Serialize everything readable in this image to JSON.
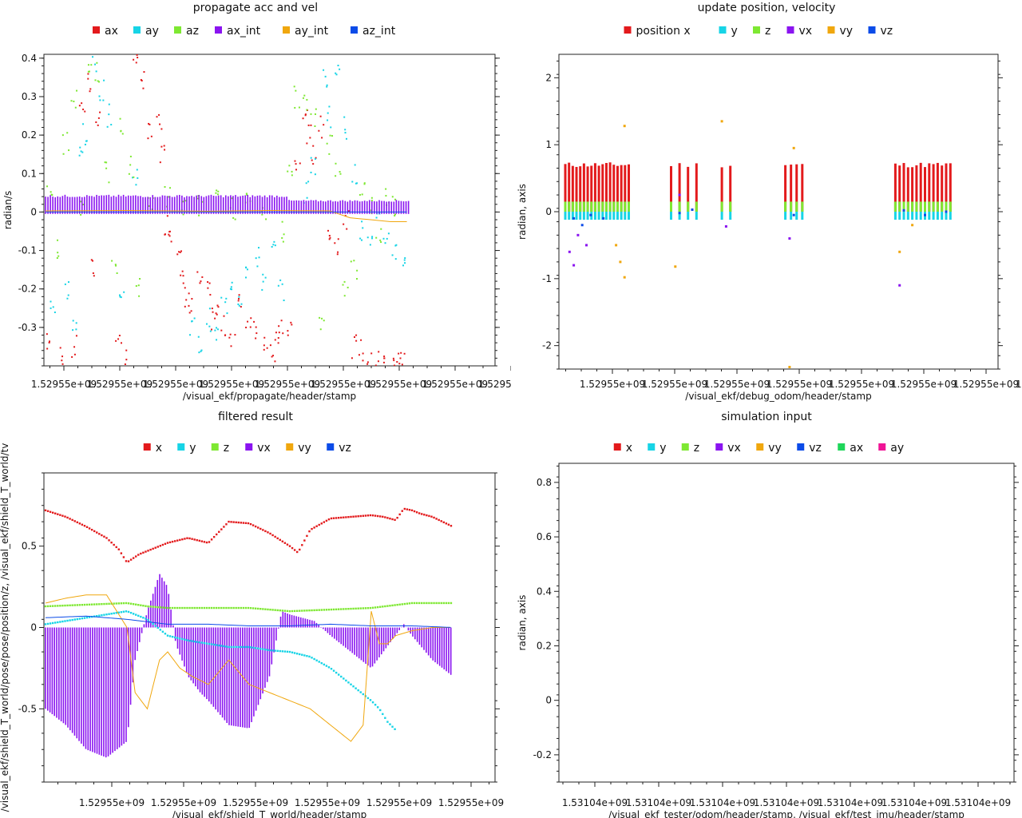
{
  "chart_data": [
    {
      "type": "scatter",
      "title": "propagate acc and vel",
      "xlabel": "/visual_ekf/propagate/header/stamp",
      "ylabel": "radian/s",
      "ylim": [
        -0.4,
        0.41
      ],
      "yticks": [
        "0.4",
        "0.3",
        "0.2",
        "0.1",
        "0",
        "-0.1",
        "-0.2",
        "-0.3"
      ],
      "ytick_values": [
        0.4,
        0.3,
        0.2,
        0.1,
        0,
        -0.1,
        -0.2,
        -0.3
      ],
      "xtick_labels": [
        "1.52955e+09",
        "1.52955e+09",
        "1.52955e+09",
        "1.52955e+09",
        "1.52955e+09",
        "1.52955e+09",
        "1.52955e+09",
        "1.52955e+09",
        "1.52955e+09"
      ],
      "legend_position": "top",
      "series": [
        {
          "name": "ax",
          "color": "#e31a1c",
          "style": "scatter",
          "x": [
            0.01,
            0.04,
            0.07,
            0.09,
            0.11,
            0.12,
            0.13,
            0.18,
            0.2,
            0.22,
            0.24,
            0.26,
            0.28,
            0.29,
            0.3,
            0.31,
            0.33,
            0.34,
            0.35,
            0.36,
            0.38,
            0.4,
            0.41,
            0.42,
            0.44,
            0.46,
            0.48,
            0.5,
            0.52,
            0.54,
            0.56,
            0.57,
            0.58,
            0.6,
            0.62,
            0.64,
            0.65,
            0.66,
            0.68,
            0.7,
            0.72,
            0.74,
            0.76,
            0.78,
            0.8,
            0.82,
            0.84,
            0.86,
            0.87,
            0.88,
            0.89
          ],
          "y": [
            -0.34,
            -0.37,
            -0.35,
            0.28,
            0.33,
            -0.15,
            0.25,
            -0.33,
            -0.38,
            0.38,
            0.35,
            0.2,
            0.23,
            0.15,
            -0.03,
            -0.05,
            -0.08,
            -0.18,
            -0.22,
            -0.25,
            -0.18,
            -0.21,
            -0.28,
            -0.26,
            -0.3,
            -0.32,
            -0.24,
            -0.28,
            -0.3,
            -0.33,
            -0.36,
            -0.34,
            -0.31,
            -0.3,
            0.12,
            0.25,
            0.2,
            0.15,
            0.22,
            -0.05,
            -0.08,
            -0.02,
            -0.35,
            -0.36,
            -0.38,
            -0.39,
            -0.37,
            -0.4,
            -0.39,
            -0.38,
            -0.4
          ]
        },
        {
          "name": "ay",
          "color": "#17d4e6",
          "style": "scatter",
          "x": [
            0.02,
            0.05,
            0.07,
            0.09,
            0.1,
            0.12,
            0.14,
            0.16,
            0.19,
            0.22,
            0.36,
            0.38,
            0.4,
            0.42,
            0.44,
            0.46,
            0.48,
            0.5,
            0.52,
            0.54,
            0.56,
            0.58,
            0.64,
            0.66,
            0.69,
            0.7,
            0.72,
            0.74,
            0.76,
            0.78,
            0.8,
            0.82,
            0.84,
            0.86,
            0.88
          ],
          "y": [
            -0.25,
            -0.2,
            -0.3,
            0.15,
            0.2,
            0.39,
            0.32,
            0.25,
            -0.22,
            0.1,
            -0.3,
            -0.35,
            -0.28,
            -0.32,
            -0.24,
            -0.18,
            -0.22,
            -0.15,
            -0.12,
            -0.18,
            -0.1,
            -0.2,
            0.05,
            0.12,
            0.35,
            0.25,
            0.38,
            0.22,
            0.1,
            -0.05,
            -0.08,
            -0.03,
            -0.06,
            -0.1,
            -0.12
          ]
        },
        {
          "name": "az",
          "color": "#7ee832",
          "style": "scatter",
          "x": [
            0.01,
            0.03,
            0.05,
            0.07,
            0.09,
            0.11,
            0.13,
            0.15,
            0.17,
            0.19,
            0.21,
            0.23,
            0.26,
            0.3,
            0.34,
            0.38,
            0.42,
            0.46,
            0.5,
            0.54,
            0.58,
            0.6,
            0.62,
            0.64,
            0.66,
            0.68,
            0.7,
            0.72,
            0.74,
            0.76,
            0.78,
            0.8,
            0.82,
            0.84,
            0.86
          ],
          "y": [
            0.05,
            -0.1,
            0.18,
            0.3,
            0.02,
            0.38,
            0.36,
            0.1,
            -0.15,
            0.22,
            0.12,
            -0.2,
            0.03,
            0.04,
            0.01,
            0.02,
            0.03,
            0.01,
            0.02,
            0.01,
            -0.05,
            0.1,
            0.3,
            0.28,
            0.24,
            -0.28,
            0.18,
            0.12,
            -0.2,
            -0.15,
            0.06,
            0.02,
            -0.06,
            0.04,
            0.02
          ]
        },
        {
          "name": "ax_int",
          "color": "#8a14f0",
          "style": "bars",
          "x_range": [
            0.0,
            0.9
          ],
          "amplitude": 0.045
        },
        {
          "name": "ay_int",
          "color": "#f0a70e",
          "style": "line",
          "x": [
            0.0,
            0.2,
            0.4,
            0.55,
            0.7,
            0.75,
            0.8,
            0.85,
            0.9
          ],
          "y": [
            0.003,
            0.004,
            0.002,
            0.004,
            0.003,
            -0.015,
            -0.02,
            -0.025,
            -0.025
          ]
        },
        {
          "name": "az_int",
          "color": "#0b4be8",
          "style": "line",
          "x": [
            0.0,
            0.9
          ],
          "y": [
            0.0,
            0.0
          ]
        }
      ]
    },
    {
      "type": "bar",
      "title": "update position, velocity",
      "xlabel": "/visual_ekf/debug_odom/header/stamp",
      "ylabel": "radian, axis",
      "ylim": [
        -2.35,
        2.35
      ],
      "yticks": [
        "2",
        "1",
        "0",
        "-1",
        "-2"
      ],
      "ytick_values": [
        2,
        1,
        0,
        -1,
        -2
      ],
      "xtick_labels": [
        "1.52955e+09",
        "1.52955e+09",
        "1.52955e+09",
        "1.52955e+09",
        "1.52955e+09",
        "1.52955e+09",
        "1.52955e+09",
        "1.52955e+09"
      ],
      "legend_position": "top",
      "groups": [
        [
          0.0,
          0.15,
          18
        ],
        [
          0.25,
          0.31,
          4
        ],
        [
          0.37,
          0.39,
          2
        ],
        [
          0.52,
          0.56,
          4
        ],
        [
          0.78,
          0.91,
          14
        ]
      ],
      "series": [
        {
          "name": "position x",
          "color": "#e31a1c",
          "level": 0.7
        },
        {
          "name": "y",
          "color": "#17d4e6",
          "level": -0.12
        },
        {
          "name": "z",
          "color": "#7ee832",
          "level": 0.15
        },
        {
          "name": "vx",
          "color": "#8a14f0",
          "points": [
            [
              0.01,
              -0.6
            ],
            [
              0.02,
              -0.8
            ],
            [
              0.03,
              -0.35
            ],
            [
              0.05,
              -0.5
            ],
            [
              0.27,
              0.25
            ],
            [
              0.53,
              -0.4
            ],
            [
              0.79,
              -1.1
            ],
            [
              0.38,
              -0.22
            ]
          ]
        },
        {
          "name": "vy",
          "color": "#f0a70e",
          "points": [
            [
              0.14,
              1.28
            ],
            [
              0.37,
              1.35
            ],
            [
              0.54,
              0.95
            ],
            [
              0.12,
              -0.5
            ],
            [
              0.13,
              -0.75
            ],
            [
              0.14,
              -0.98
            ],
            [
              0.26,
              -0.82
            ],
            [
              0.53,
              -2.32
            ],
            [
              0.79,
              -0.6
            ],
            [
              0.82,
              -0.2
            ]
          ]
        },
        {
          "name": "vz",
          "color": "#0b4be8",
          "points": [
            [
              0.02,
              -0.1
            ],
            [
              0.04,
              -0.2
            ],
            [
              0.06,
              -0.05
            ],
            [
              0.09,
              -0.1
            ],
            [
              0.27,
              -0.02
            ],
            [
              0.3,
              0.03
            ],
            [
              0.54,
              -0.05
            ],
            [
              0.8,
              0.02
            ],
            [
              0.85,
              -0.05
            ],
            [
              0.9,
              0.0
            ]
          ]
        }
      ]
    },
    {
      "type": "line",
      "title": "filtered result",
      "xlabel": "/visual_ekf/shield_T_world/header/stamp",
      "ylabel": "/visual_ekf/shield_T_world/pose/pose/position/z, /visual_ekf/shield_T_world/tv",
      "ylim": [
        -0.95,
        0.95
      ],
      "yticks": [
        "0.5",
        "0",
        "-0.5"
      ],
      "ytick_values": [
        0.5,
        0,
        -0.5
      ],
      "xtick_labels": [
        "1.52955e+09",
        "1.52955e+09",
        "1.52955e+09",
        "1.52955e+09",
        "1.52955e+09",
        "1.52955e+09"
      ],
      "legend_position": "top",
      "series": [
        {
          "name": "x",
          "color": "#e31a1c",
          "style": "dots",
          "x": [
            0.0,
            0.05,
            0.1,
            0.15,
            0.18,
            0.2,
            0.23,
            0.26,
            0.3,
            0.35,
            0.4,
            0.45,
            0.5,
            0.55,
            0.6,
            0.62,
            0.65,
            0.7,
            0.75,
            0.8,
            0.83,
            0.86,
            0.88,
            0.9,
            0.92,
            0.95,
            1.0
          ],
          "y": [
            0.72,
            0.68,
            0.62,
            0.55,
            0.48,
            0.4,
            0.45,
            0.48,
            0.52,
            0.55,
            0.52,
            0.65,
            0.64,
            0.58,
            0.5,
            0.46,
            0.6,
            0.67,
            0.68,
            0.69,
            0.68,
            0.66,
            0.73,
            0.72,
            0.7,
            0.68,
            0.62
          ]
        },
        {
          "name": "y",
          "color": "#17d4e6",
          "style": "dots",
          "x": [
            0.0,
            0.05,
            0.1,
            0.15,
            0.2,
            0.25,
            0.3,
            0.35,
            0.4,
            0.45,
            0.5,
            0.55,
            0.6,
            0.65,
            0.7,
            0.75,
            0.8,
            0.82,
            0.84,
            0.86
          ],
          "y": [
            0.02,
            0.04,
            0.06,
            0.08,
            0.1,
            0.05,
            -0.05,
            -0.08,
            -0.1,
            -0.12,
            -0.12,
            -0.14,
            -0.15,
            -0.18,
            -0.25,
            -0.35,
            -0.45,
            -0.5,
            -0.58,
            -0.63
          ]
        },
        {
          "name": "z",
          "color": "#7ee832",
          "style": "dots",
          "x": [
            0.0,
            0.1,
            0.2,
            0.25,
            0.3,
            0.4,
            0.5,
            0.55,
            0.6,
            0.7,
            0.8,
            0.9,
            1.0
          ],
          "y": [
            0.13,
            0.14,
            0.15,
            0.13,
            0.12,
            0.12,
            0.12,
            0.11,
            0.1,
            0.11,
            0.12,
            0.15,
            0.15
          ]
        },
        {
          "name": "vx",
          "color": "#8a14f0",
          "style": "bars",
          "x": [
            0.0,
            0.05,
            0.1,
            0.15,
            0.2,
            0.22,
            0.25,
            0.28,
            0.3,
            0.32,
            0.35,
            0.38,
            0.4,
            0.45,
            0.5,
            0.55,
            0.58,
            0.6,
            0.63,
            0.66,
            0.7,
            0.75,
            0.8,
            0.85,
            0.88,
            0.9,
            0.95,
            1.0
          ],
          "y": [
            -0.5,
            -0.6,
            -0.75,
            -0.8,
            -0.7,
            -0.2,
            0.1,
            0.33,
            0.25,
            -0.1,
            -0.3,
            -0.4,
            -0.45,
            -0.6,
            -0.62,
            -0.3,
            0.1,
            0.08,
            0.06,
            0.04,
            -0.05,
            -0.15,
            -0.25,
            -0.08,
            0.02,
            -0.05,
            -0.2,
            -0.3
          ]
        },
        {
          "name": "vy",
          "color": "#f0a70e",
          "style": "line",
          "x": [
            0.0,
            0.05,
            0.1,
            0.15,
            0.2,
            0.22,
            0.25,
            0.28,
            0.3,
            0.33,
            0.36,
            0.4,
            0.45,
            0.5,
            0.55,
            0.6,
            0.65,
            0.7,
            0.75,
            0.78,
            0.8,
            0.82,
            0.84,
            0.86,
            0.9,
            0.95,
            1.0
          ],
          "y": [
            0.15,
            0.18,
            0.2,
            0.2,
            0.0,
            -0.4,
            -0.5,
            -0.2,
            -0.15,
            -0.25,
            -0.3,
            -0.35,
            -0.2,
            -0.35,
            -0.4,
            -0.45,
            -0.5,
            -0.6,
            -0.7,
            -0.6,
            0.1,
            -0.1,
            -0.1,
            -0.05,
            -0.02,
            0.0,
            0.0
          ]
        },
        {
          "name": "vz",
          "color": "#0b4be8",
          "style": "line",
          "x": [
            0.0,
            0.1,
            0.2,
            0.3,
            0.4,
            0.5,
            0.6,
            0.7,
            0.8,
            0.9,
            1.0
          ],
          "y": [
            0.06,
            0.07,
            0.05,
            0.02,
            0.02,
            0.01,
            0.01,
            0.02,
            0.01,
            0.01,
            0.0
          ]
        }
      ]
    },
    {
      "type": "line",
      "title": "simulation input",
      "xlabel": "/visual_ekf_tester/odom/header/stamp, /visual_ekf/test_imu/header/stamp",
      "ylabel": "radian, axis",
      "ylim": [
        -0.3,
        0.87
      ],
      "yticks": [
        "0.8",
        "0.6",
        "0.4",
        "0.2",
        "0",
        "-0.2"
      ],
      "ytick_values": [
        0.8,
        0.6,
        0.4,
        0.2,
        0,
        -0.2
      ],
      "xtick_labels": [
        "1.53104e+09",
        "1.53104e+09",
        "1.53104e+09",
        "1.53104e+09",
        "1.53104e+09",
        "1.53104e+09",
        "1.53104e+09"
      ],
      "legend_position": "top",
      "series": [
        {
          "name": "x",
          "color": "#e31a1c"
        },
        {
          "name": "y",
          "color": "#17d4e6"
        },
        {
          "name": "z",
          "color": "#7ee832"
        },
        {
          "name": "vx",
          "color": "#8a14f0"
        },
        {
          "name": "vy",
          "color": "#f0a70e"
        },
        {
          "name": "vz",
          "color": "#0b4be8"
        },
        {
          "name": "ax",
          "color": "#1fd65a"
        },
        {
          "name": "ay",
          "color": "#f01496"
        }
      ]
    }
  ]
}
